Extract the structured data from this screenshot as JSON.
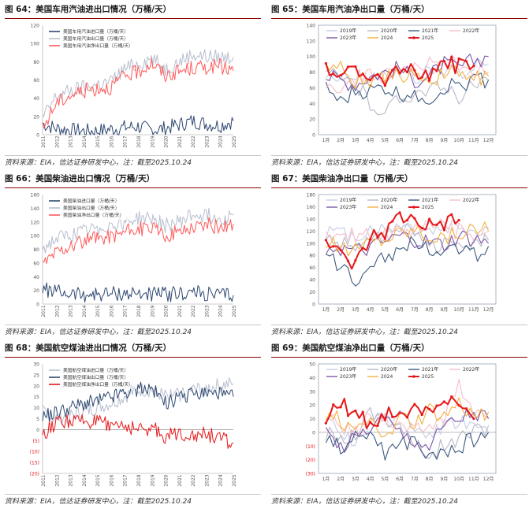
{
  "panels": [
    {
      "title": "图 64：美国车用汽油进出口情况（万桶/天）",
      "source": "资料来源：EIA，信达证券研发中心，注：截至2025.10.24",
      "chart_data": {
        "type": "line",
        "ylim": [
          0,
          120
        ],
        "yticks": [
          "0",
          "20",
          "40",
          "60",
          "80",
          "100",
          "120"
        ],
        "x_categories": [
          "2011",
          "2012",
          "2013",
          "2014",
          "2015",
          "2016",
          "2017",
          "2018",
          "2019",
          "2020",
          "2021",
          "2022",
          "2023",
          "2024",
          "2025"
        ],
        "legend_position": "top-left",
        "series": [
          {
            "name": "美国车用汽油进口量（万桶/天）",
            "color": "#2e4770",
            "x": [
              2011,
              2012,
              2013,
              2014,
              2015,
              2016,
              2017,
              2018,
              2019,
              2020,
              2021,
              2022,
              2023,
              2024,
              2025
            ],
            "values": [
              12,
              7,
              5,
              4,
              4,
              6,
              8,
              9,
              5,
              7,
              11,
              15,
              12,
              10,
              15
            ]
          },
          {
            "name": "美国车用汽油出口量（万桶/天）",
            "color": "#b8bfce",
            "x": [
              2011,
              2012,
              2013,
              2014,
              2015,
              2016,
              2017,
              2018,
              2019,
              2020,
              2021,
              2022,
              2023,
              2024,
              2025
            ],
            "values": [
              18,
              42,
              48,
              52,
              55,
              58,
              72,
              78,
              84,
              72,
              80,
              88,
              86,
              85,
              85
            ]
          },
          {
            "name": "美国车用汽油净出口量（万桶/天）",
            "color": "#ff5a5a",
            "x": [
              2011,
              2012,
              2013,
              2014,
              2015,
              2016,
              2017,
              2018,
              2019,
              2020,
              2021,
              2022,
              2023,
              2024,
              2025
            ],
            "values": [
              6,
              35,
              43,
              48,
              51,
              52,
              64,
              69,
              79,
              65,
              69,
              73,
              74,
              75,
              70
            ]
          }
        ]
      }
    },
    {
      "title": "图 65：美国车用汽油净出口量（万桶/天）",
      "source": "资料来源：EIA，信达证券研发中心，注：截至2025.10.24",
      "chart_data": {
        "type": "line",
        "ylim": [
          0,
          140
        ],
        "yticks": [
          "0",
          "20",
          "40",
          "60",
          "80",
          "100",
          "120",
          "140"
        ],
        "x_categories": [
          "1月",
          "2月",
          "3月",
          "4月",
          "5月",
          "6月",
          "7月",
          "8月",
          "9月",
          "10月",
          "11月",
          "12月"
        ],
        "legend_position": "top",
        "series": [
          {
            "name": "2019年",
            "color": "#c5cde6",
            "values": [
              75,
              78,
              70,
              72,
              75,
              80,
              75,
              78,
              80,
              82,
              85,
              90
            ]
          },
          {
            "name": "2020年",
            "color": "#b8b8c8",
            "values": [
              80,
              70,
              65,
              40,
              30,
              45,
              55,
              60,
              55,
              50,
              60,
              70
            ]
          },
          {
            "name": "2021年",
            "color": "#3d5a80",
            "values": [
              60,
              40,
              55,
              55,
              60,
              50,
              55,
              45,
              60,
              65,
              70,
              70
            ]
          },
          {
            "name": "2022年",
            "color": "#f7bfc9",
            "values": [
              70,
              60,
              70,
              80,
              75,
              80,
              85,
              90,
              95,
              90,
              85,
              80
            ]
          },
          {
            "name": "2023年",
            "color": "#7b57a8",
            "values": [
              75,
              70,
              65,
              75,
              80,
              85,
              70,
              75,
              90,
              85,
              95,
              100
            ]
          },
          {
            "name": "2024",
            "color": "#f5b041",
            "values": [
              90,
              85,
              70,
              65,
              70,
              75,
              80,
              70,
              75,
              80,
              70,
              75
            ]
          },
          {
            "name": "2025",
            "color": "#e8171a",
            "values": [
              85,
              82,
              78,
              80,
              72,
              78,
              82,
              80,
              88,
              90,
              88,
              null
            ]
          }
        ]
      }
    },
    {
      "title": "图 66：美国柴油进出口情况（万桶/天）",
      "source": "资料来源：EIA，信达证券研发中心，注：截至2025.10.24",
      "chart_data": {
        "type": "line",
        "ylim": [
          0,
          160
        ],
        "yticks": [
          "0",
          "20",
          "40",
          "60",
          "80",
          "100",
          "120",
          "140",
          "160"
        ],
        "x_categories": [
          "2011",
          "2012",
          "2013",
          "2014",
          "2015",
          "2016",
          "2017",
          "2018",
          "2019",
          "2020",
          "2021",
          "2022",
          "2023",
          "2024",
          "2025"
        ],
        "legend_position": "top-left",
        "series": [
          {
            "name": "美国柴油进口量（万桶/天）",
            "color": "#2e4770",
            "x": [
              2011,
              2012,
              2013,
              2014,
              2015,
              2016,
              2017,
              2018,
              2019,
              2020,
              2021,
              2022,
              2023,
              2024,
              2025
            ],
            "values": [
              22,
              18,
              15,
              14,
              14,
              15,
              15,
              15,
              15,
              14,
              15,
              17,
              14,
              13,
              13
            ]
          },
          {
            "name": "美国柴油出口量（万桶/天）",
            "color": "#b8bfce",
            "x": [
              2011,
              2012,
              2013,
              2014,
              2015,
              2016,
              2017,
              2018,
              2019,
              2020,
              2021,
              2022,
              2023,
              2024,
              2025
            ],
            "values": [
              80,
              95,
              100,
              105,
              110,
              115,
              120,
              125,
              125,
              115,
              120,
              130,
              130,
              125,
              130
            ]
          },
          {
            "name": "美国柴油净出口量（万桶/天）",
            "color": "#ff5a5a",
            "x": [
              2011,
              2012,
              2013,
              2014,
              2015,
              2016,
              2017,
              2018,
              2019,
              2020,
              2021,
              2022,
              2023,
              2024,
              2025
            ],
            "values": [
              58,
              77,
              85,
              91,
              96,
              100,
              105,
              110,
              110,
              101,
              105,
              113,
              116,
              112,
              117
            ]
          }
        ]
      }
    },
    {
      "title": "图 67：美国柴油净出口量（万桶/天）",
      "source": "资料来源：EIA，信达证券研发中心，注：截至2025.10.24",
      "chart_data": {
        "type": "line",
        "ylim": [
          0,
          180
        ],
        "yticks": [
          "0",
          "20",
          "40",
          "60",
          "80",
          "100",
          "120",
          "140",
          "160",
          "180"
        ],
        "x_categories": [
          "1月",
          "2月",
          "3月",
          "4月",
          "5月",
          "6月",
          "7月",
          "8月",
          "9月",
          "10月",
          "11月",
          "12月"
        ],
        "legend_position": "top",
        "series": [
          {
            "name": "2019年",
            "color": "#c5cde6",
            "values": [
              120,
              115,
              110,
              125,
              120,
              130,
              125,
              120,
              125,
              130,
              120,
              125
            ]
          },
          {
            "name": "2020年",
            "color": "#b8b8c8",
            "values": [
              110,
              100,
              95,
              105,
              110,
              120,
              115,
              100,
              95,
              90,
              100,
              105
            ]
          },
          {
            "name": "2021年",
            "color": "#3d5a80",
            "values": [
              80,
              60,
              40,
              70,
              80,
              90,
              100,
              95,
              90,
              85,
              80,
              95
            ]
          },
          {
            "name": "2022年",
            "color": "#f7bfc9",
            "values": [
              110,
              105,
              115,
              120,
              115,
              125,
              120,
              130,
              125,
              120,
              115,
              120
            ]
          },
          {
            "name": "2023年",
            "color": "#7b57a8",
            "values": [
              95,
              90,
              85,
              90,
              100,
              110,
              105,
              100,
              95,
              110,
              105,
              100
            ]
          },
          {
            "name": "2024",
            "color": "#f5b041",
            "values": [
              100,
              95,
              90,
              105,
              110,
              120,
              125,
              115,
              110,
              120,
              125,
              120
            ]
          },
          {
            "name": "2025",
            "color": "#e8171a",
            "values": [
              105,
              80,
              65,
              110,
              120,
              145,
              140,
              130,
              135,
              138,
              null,
              null
            ]
          }
        ]
      }
    },
    {
      "title": "图 68：美国航空煤油进出口情况（万桶/天）",
      "source": "资料来源：EIA，信达证券研发中心，注：截至2025.10.24",
      "chart_data": {
        "type": "line",
        "ylim": [
          -20,
          30
        ],
        "yticks": [
          "(20)",
          "(15)",
          "(10)",
          "(5)",
          "0",
          "5",
          "10",
          "15",
          "20",
          "25",
          "30"
        ],
        "x_categories": [
          "2011",
          "2012",
          "2013",
          "2014",
          "2015",
          "2016",
          "2017",
          "2018",
          "2019",
          "2020",
          "2021",
          "2022",
          "2023",
          "2024",
          "2025"
        ],
        "legend_position": "top-left",
        "series": [
          {
            "name": "美国航空煤油进口量（万桶/天）",
            "color": "#b8bfce",
            "x": [
              2011,
              2012,
              2013,
              2014,
              2015,
              2016,
              2017,
              2018,
              2019,
              2020,
              2021,
              2022,
              2023,
              2024,
              2025
            ],
            "values": [
              8,
              5,
              6,
              8,
              10,
              12,
              15,
              18,
              18,
              15,
              16,
              18,
              19,
              20,
              21
            ]
          },
          {
            "name": "美国航空煤油出口量（万桶/天）",
            "color": "#2e4770",
            "x": [
              2011,
              2012,
              2013,
              2014,
              2015,
              2016,
              2017,
              2018,
              2019,
              2020,
              2021,
              2022,
              2023,
              2024,
              2025
            ],
            "values": [
              6,
              8,
              10,
              12,
              13,
              15,
              17,
              18,
              19,
              12,
              14,
              16,
              17,
              16,
              15
            ]
          },
          {
            "name": "美国航空煤油净出口量（万桶/天）",
            "color": "#e8171a",
            "x": [
              2011,
              2012,
              2013,
              2014,
              2015,
              2016,
              2017,
              2018,
              2019,
              2020,
              2021,
              2022,
              2023,
              2024,
              2025
            ],
            "values": [
              -2,
              3,
              4,
              4,
              3,
              3,
              2,
              0,
              1,
              -3,
              -2,
              -2,
              -2,
              -4,
              -6
            ]
          }
        ]
      }
    },
    {
      "title": "图 69：美国航空煤油净出口量（万桶/天）",
      "source": "资料来源：EIA，信达证券研发中心，注：截至2025.10.24",
      "chart_data": {
        "type": "line",
        "ylim": [
          -30,
          50
        ],
        "yticks": [
          "(30)",
          "(20)",
          "(10)",
          "0",
          "10",
          "20",
          "30",
          "40",
          "50"
        ],
        "x_categories": [
          "1月",
          "2月",
          "3月",
          "4月",
          "5月",
          "6月",
          "7月",
          "8月",
          "9月",
          "10月",
          "11月",
          "12月"
        ],
        "legend_position": "top",
        "series": [
          {
            "name": "2019年",
            "color": "#c5cde6",
            "values": [
              5,
              0,
              -5,
              5,
              10,
              15,
              5,
              0,
              5,
              10,
              5,
              0
            ]
          },
          {
            "name": "2020年",
            "color": "#b8b8c8",
            "values": [
              0,
              -5,
              0,
              15,
              10,
              5,
              -10,
              -15,
              -10,
              -5,
              0,
              5
            ]
          },
          {
            "name": "2021年",
            "color": "#3d5a80",
            "values": [
              -5,
              -10,
              -5,
              0,
              -15,
              -10,
              -5,
              -20,
              -15,
              -10,
              -5,
              0
            ]
          },
          {
            "name": "2022年",
            "color": "#f7bfc9",
            "values": [
              10,
              5,
              0,
              15,
              10,
              5,
              0,
              5,
              10,
              35,
              15,
              10
            ]
          },
          {
            "name": "2023年",
            "color": "#7b57a8",
            "values": [
              0,
              -10,
              -5,
              5,
              10,
              0,
              -5,
              -10,
              5,
              10,
              15,
              10
            ]
          },
          {
            "name": "2024",
            "color": "#f5b041",
            "values": [
              15,
              10,
              0,
              5,
              0,
              10,
              5,
              15,
              10,
              20,
              10,
              15
            ]
          },
          {
            "name": "2025",
            "color": "#e8171a",
            "values": [
              10,
              20,
              15,
              5,
              15,
              10,
              20,
              15,
              25,
              20,
              10,
              null
            ]
          }
        ]
      }
    }
  ]
}
